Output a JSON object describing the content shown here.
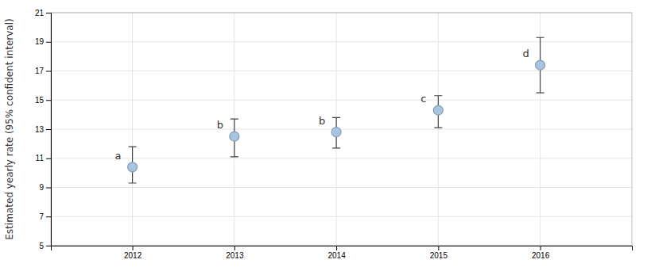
{
  "chart_data": {
    "type": "scatter",
    "ylabel": "Estimated yearly rate (95% confident interval)",
    "x": [
      2012,
      2013,
      2014,
      2015,
      2016
    ],
    "values": [
      10.4,
      12.5,
      12.8,
      14.3,
      17.4
    ],
    "ci_low": [
      9.3,
      11.1,
      11.7,
      13.1,
      15.5
    ],
    "ci_high": [
      11.8,
      13.7,
      13.8,
      15.3,
      19.3
    ],
    "labels": [
      "a",
      "b",
      "b",
      "c",
      "d"
    ],
    "xlim": [
      2011.2,
      2016.9
    ],
    "xticks": [
      2012,
      2013,
      2014,
      2015,
      2016
    ],
    "ylim": [
      5,
      21
    ],
    "yticks": [
      5,
      7,
      9,
      11,
      13,
      15,
      17,
      19,
      21
    ],
    "color": "#a8c4e0",
    "grid": true
  }
}
